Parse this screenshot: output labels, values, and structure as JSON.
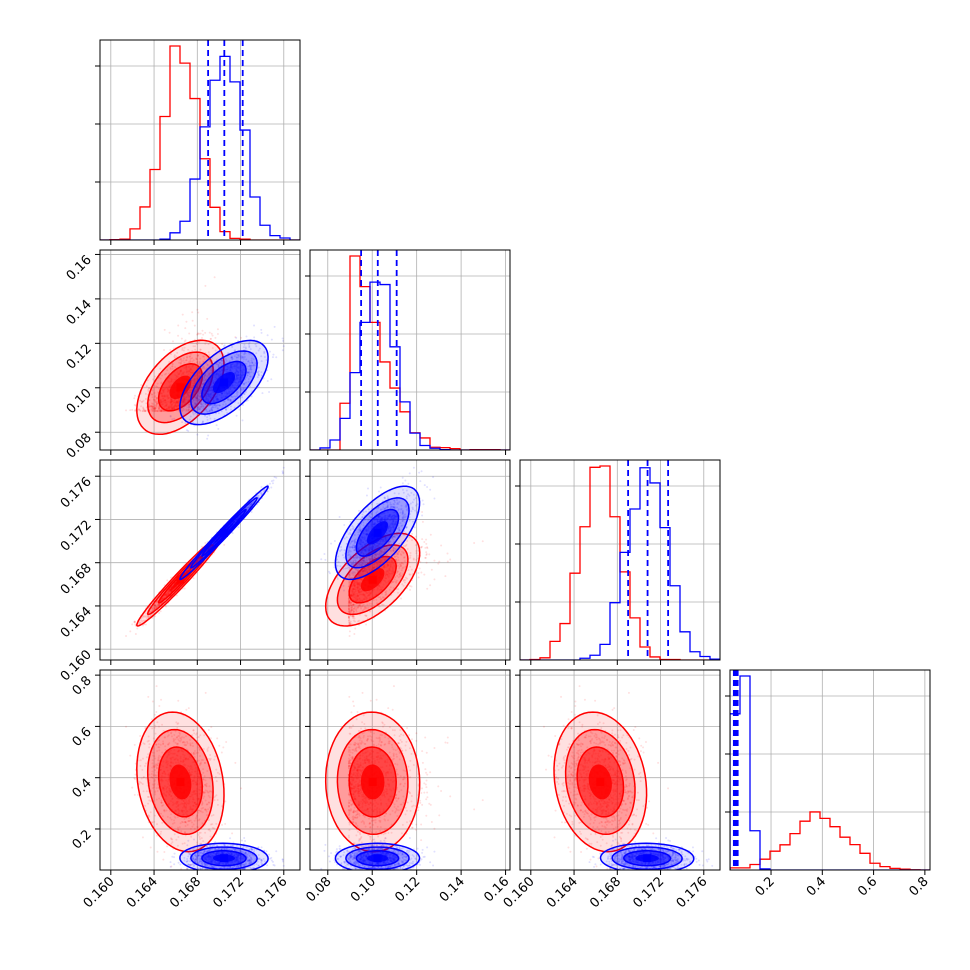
{
  "chart_data": {
    "type": "corner",
    "grid": true,
    "colors": {
      "red_series": "#ff0000",
      "blue_series": "#0000ff"
    },
    "parameters": [
      {
        "range": [
          0.159,
          0.1775
        ],
        "ticks": [
          0.16,
          0.164,
          0.168,
          0.172,
          0.176
        ],
        "tick_labels": [
          "0.160",
          "0.164",
          "0.168",
          "0.172",
          "0.176"
        ]
      },
      {
        "range": [
          0.072,
          0.162
        ],
        "ticks": [
          0.08,
          0.1,
          0.12,
          0.14,
          0.16
        ],
        "tick_labels": [
          "0.08",
          "0.10",
          "0.12",
          "0.14",
          "0.16"
        ]
      },
      {
        "range": [
          0.159,
          0.1775
        ],
        "ticks": [
          0.16,
          0.164,
          0.168,
          0.172,
          0.176
        ],
        "tick_labels": [
          "0.160",
          "0.164",
          "0.168",
          "0.172",
          "0.176"
        ]
      },
      {
        "range": [
          0.04,
          0.82
        ],
        "ticks": [
          0.2,
          0.4,
          0.6,
          0.8
        ],
        "tick_labels": [
          "0.2",
          "0.4",
          "0.6",
          "0.8"
        ]
      }
    ],
    "series": [
      {
        "color": "#ff0000",
        "means": [
          0.1665,
          0.0985,
          0.1665,
          0.38
        ],
        "stds": [
          0.0017,
          0.0085,
          0.0018,
          0.11
        ]
      },
      {
        "color": "#0000ff",
        "means": [
          0.1705,
          0.1025,
          0.1708,
          0.085
        ],
        "stds": [
          0.0017,
          0.008,
          0.0018,
          0.025
        ]
      }
    ],
    "quantile_lines": [
      [
        0.169,
        0.1705,
        0.1722
      ],
      [
        0.095,
        0.1025,
        0.111
      ],
      [
        0.169,
        0.1708,
        0.1727
      ],
      [
        0.055,
        0.06,
        0.065,
        0.07
      ]
    ],
    "correlations": {
      "red": {
        "0-1": 0.5,
        "0-2": 0.98,
        "1-2": 0.65,
        "0-3": -0.25,
        "1-3": 0.1,
        "2-3": -0.25
      },
      "blue": {
        "0-1": 0.6,
        "0-2": 0.99,
        "1-2": 0.55,
        "0-3": 0.0,
        "1-3": 0.0,
        "2-3": 0.0
      }
    }
  }
}
